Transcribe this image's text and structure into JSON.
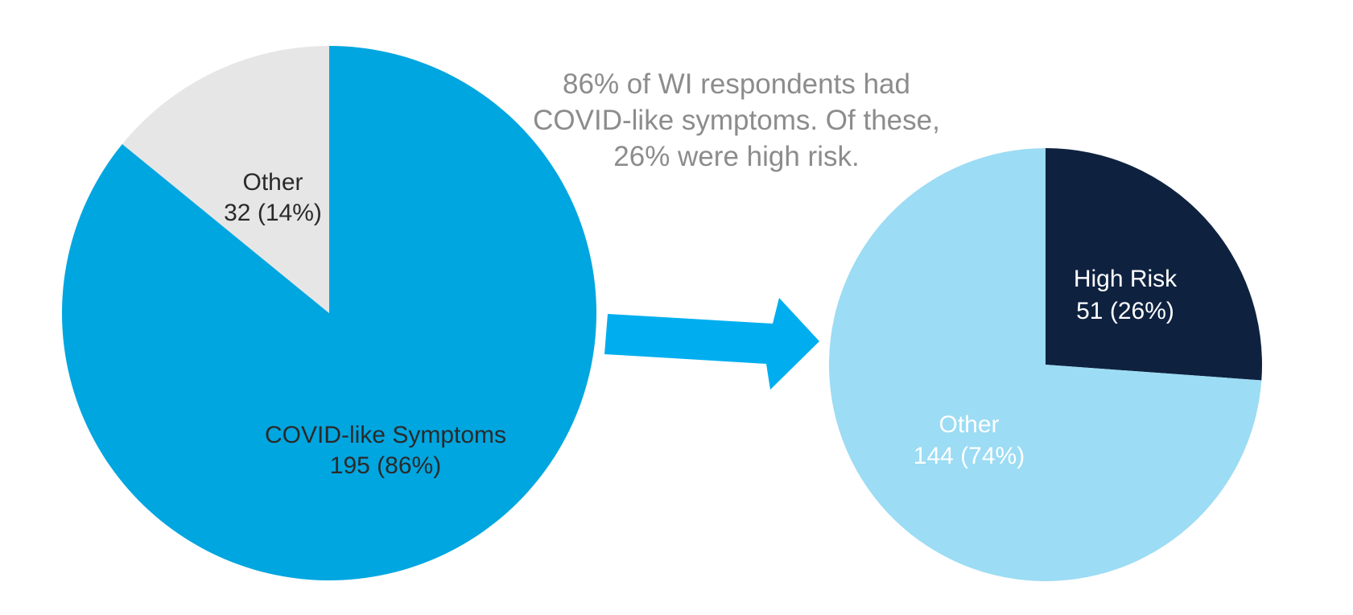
{
  "annotation": "86% of WI respondents had COVID-like symptoms.  Of these, 26% were high risk.",
  "colors": {
    "covid": "#00a6e0",
    "other_left": "#e6e6e6",
    "high_risk": "#0e2240",
    "other_right": "#9cdcf4",
    "arrow": "#00aeef"
  },
  "chart_data": [
    {
      "type": "pie",
      "slices": [
        {
          "label": "COVID-like Symptoms",
          "value": 195,
          "value_label": "195 (86%)"
        },
        {
          "label": "Other",
          "value": 32,
          "value_label": "32 (14%)"
        }
      ]
    },
    {
      "type": "pie",
      "slices": [
        {
          "label": "High Risk",
          "value": 51,
          "value_label": "51 (26%)"
        },
        {
          "label": "Other",
          "value": 144,
          "value_label": "144 (74%)"
        }
      ]
    }
  ]
}
